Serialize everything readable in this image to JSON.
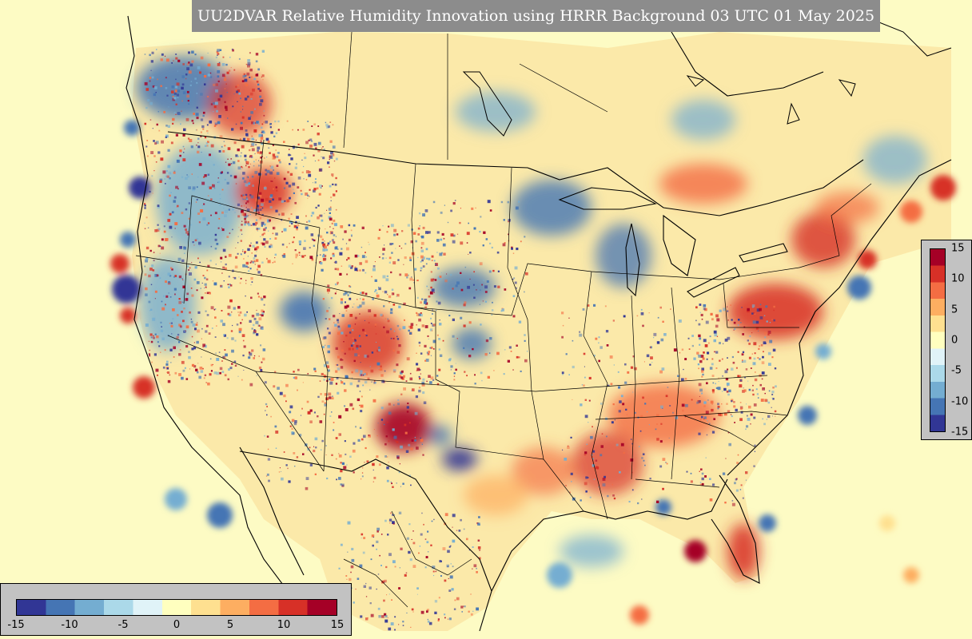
{
  "title": "UU2DVAR Relative Humidity Innovation using HRRR Background 03 UTC 01 May 2025",
  "colorbar": {
    "min": -15,
    "max": 15,
    "horizontal_ticks": [
      "-15",
      "-10",
      "-5",
      "0",
      "5",
      "10",
      "15"
    ],
    "vertical_ticks": [
      "15",
      "10",
      "5",
      "0",
      "-5",
      "-10",
      "-15"
    ],
    "palette": [
      "#313695",
      "#4575b4",
      "#74add1",
      "#abd9e9",
      "#e0f3f8",
      "#ffffbf",
      "#fee090",
      "#fdae61",
      "#f46d43",
      "#d73027",
      "#a50026"
    ]
  },
  "colors": {
    "ocean_background": "#fdfbc4",
    "title_background": "#8c8c8c",
    "colorbar_panel": "#c2c2c2",
    "boundaries": "#000000"
  }
}
